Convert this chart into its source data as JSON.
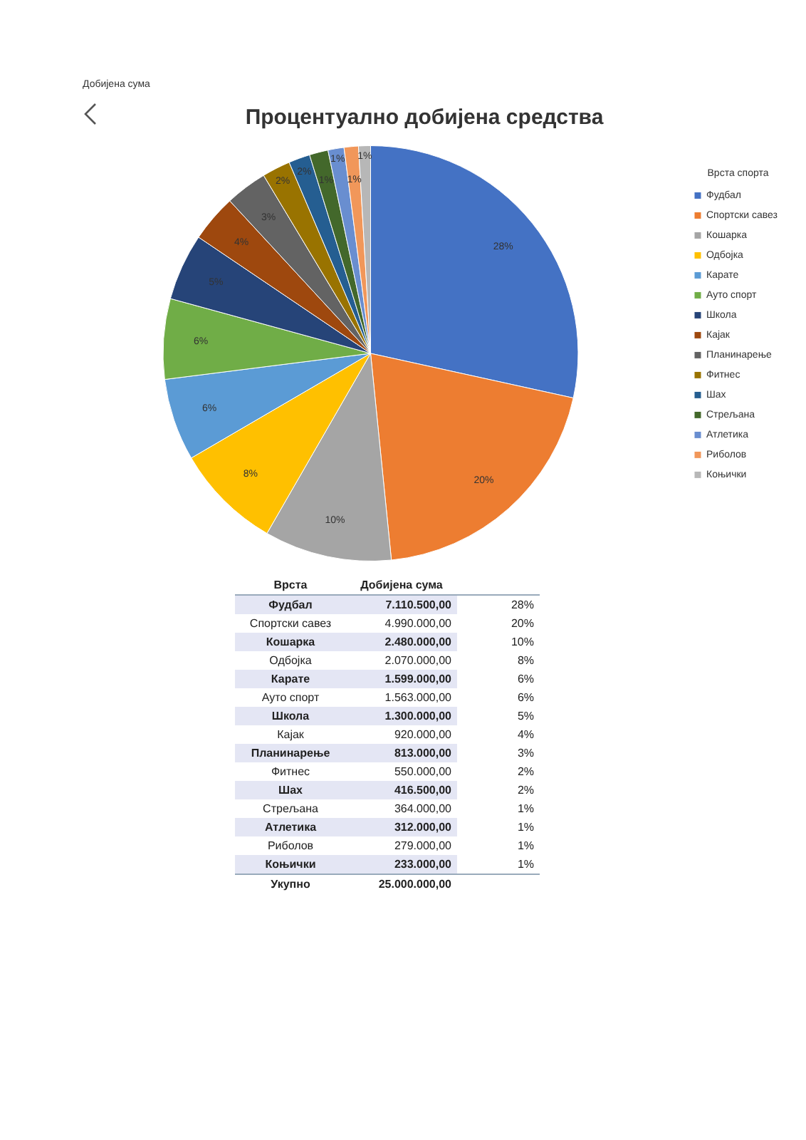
{
  "chart_data": {
    "type": "pie",
    "title": "Процентуално добијена средства",
    "legend_title": "Врста спорта",
    "legend": "right",
    "categories": [
      "Фудбал",
      "Спортски савез",
      "Кошарка",
      "Одбојка",
      "Карате",
      "Ауто спорт",
      "Школа",
      "Кајак",
      "Планинарење",
      "Фитнес",
      "Шах",
      "Стрељана",
      "Атлетика",
      "Риболов",
      "Коњички"
    ],
    "values": [
      28.442,
      19.96,
      9.92,
      8.28,
      6.396,
      6.252,
      5.2,
      3.68,
      3.252,
      2.2,
      1.666,
      1.456,
      1.248,
      1.116,
      0.932
    ],
    "value_labels": [
      "28%",
      "20%",
      "10%",
      "8%",
      "6%",
      "6%",
      "5%",
      "4%",
      "3%",
      "2%",
      "2%",
      "1%",
      "1%",
      "1%",
      "1%"
    ],
    "colors": [
      "#4472c4",
      "#ed7d31",
      "#a5a5a5",
      "#ffc000",
      "#5b9bd5",
      "#70ad47",
      "#264478",
      "#9e480e",
      "#636363",
      "#997300",
      "#255e91",
      "#43682b",
      "#698ed0",
      "#f1975a",
      "#b7b7b7"
    ],
    "annotations": [
      "Добијена сума",
      "Врста",
      "Добијена сума",
      "7.110.500,00",
      "4.990.000,00",
      "2.480.000,00",
      "2.070.000,00",
      "1.599.000,00",
      "1.563.000,00",
      "1.300.000,00",
      "920.000,00",
      "813.000,00",
      "550.000,00",
      "416.500,00",
      "364.000,00",
      "312.000,00",
      "279.000,00",
      "233.000,00",
      "Укупно",
      "25.000.000,00"
    ]
  }
}
